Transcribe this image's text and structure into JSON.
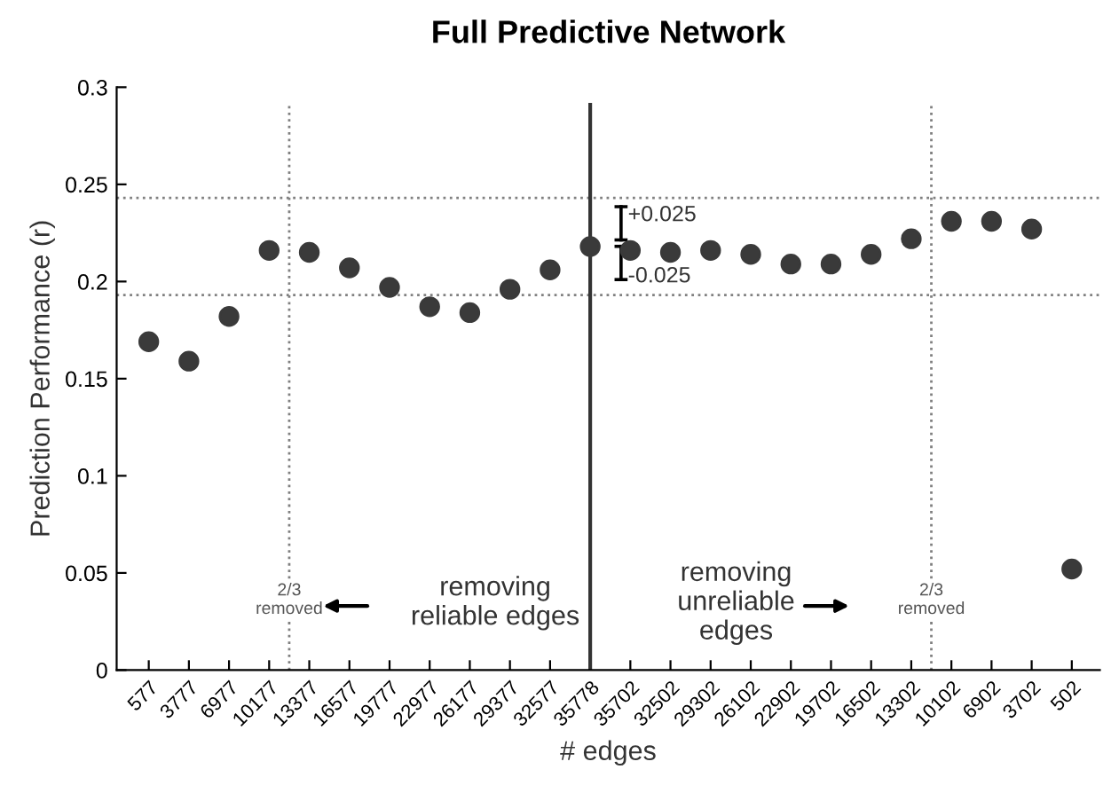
{
  "chart_data": {
    "type": "scatter",
    "title": "Full Predictive Network",
    "xlabel": "# edges",
    "ylabel": "Prediction Performance (r)",
    "categories": [
      "577",
      "3777",
      "6977",
      "10177",
      "13377",
      "16577",
      "19777",
      "22977",
      "26177",
      "29377",
      "32577",
      "35778",
      "35702",
      "32502",
      "29302",
      "26102",
      "22902",
      "19702",
      "16502",
      "13302",
      "10102",
      "6902",
      "3702",
      "502"
    ],
    "series": [
      {
        "color": "#3a3a3a",
        "values": [
          0.169,
          0.159,
          0.182,
          0.216,
          0.215,
          0.207,
          0.197,
          0.187,
          0.184,
          0.196,
          0.206,
          0.218,
          0.216,
          0.215,
          0.216,
          0.214,
          0.209,
          0.209,
          0.214,
          0.222,
          0.231,
          0.231,
          0.227,
          0.052
        ]
      }
    ],
    "marker": "circle",
    "ylim": [
      0,
      0.3
    ],
    "yticks": [
      0,
      0.05,
      0.1,
      0.15,
      0.2,
      0.25,
      0.3
    ],
    "grid": false,
    "legend": false,
    "ref_lines": [
      {
        "axis": "y",
        "value": 0.243,
        "line_style": "dotted",
        "color": "#808080"
      },
      {
        "axis": "y",
        "value": 0.193,
        "line_style": "dotted",
        "color": "#808080"
      },
      {
        "axis": "x",
        "value": "35778",
        "line_style": "solid",
        "color": "#333333"
      }
    ],
    "annotations": [
      "removing\nreliable edges",
      "removing\nunreliable\nedges",
      "+0.025",
      "-0.025",
      "2/3\nremoved",
      "2/3\nremoved"
    ]
  }
}
